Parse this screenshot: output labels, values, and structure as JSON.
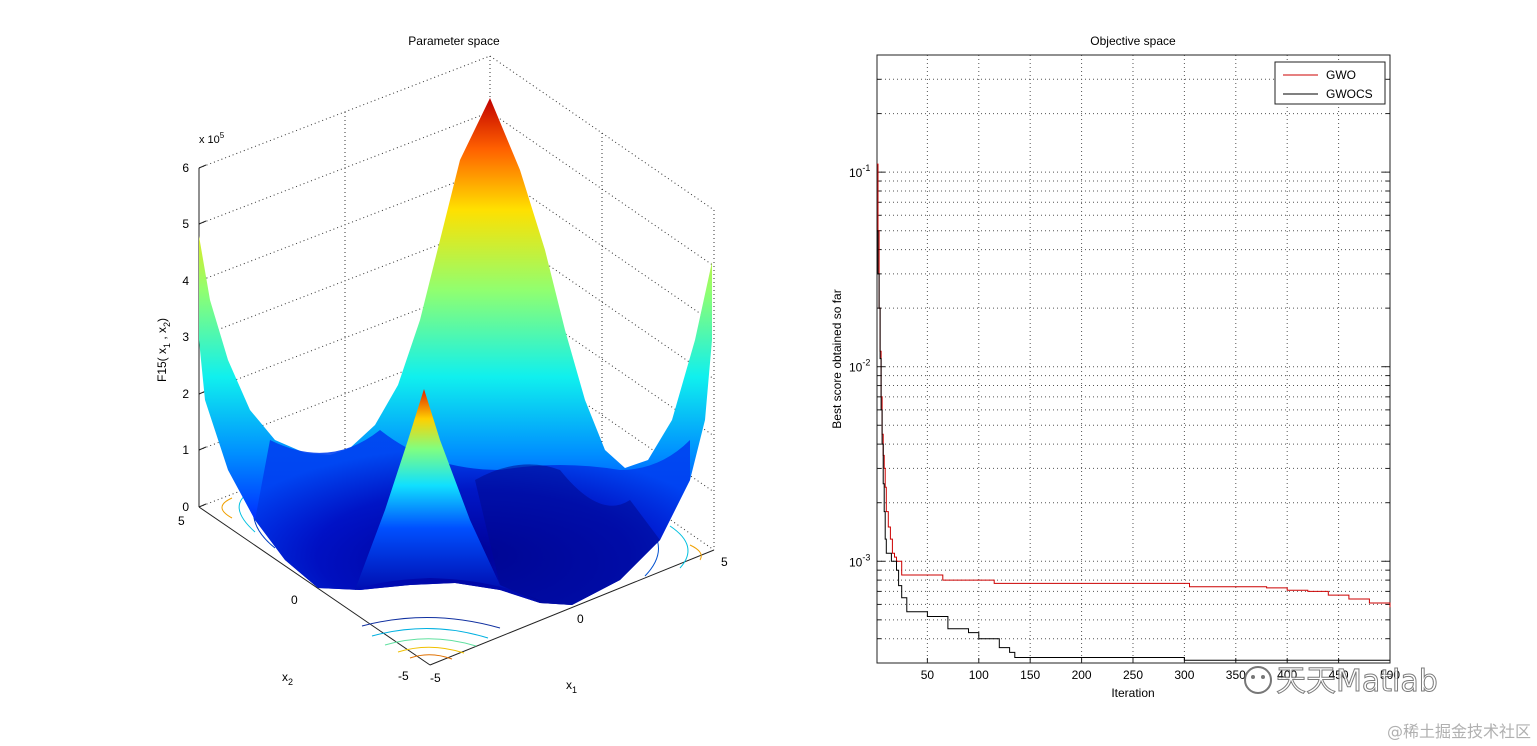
{
  "chart_data": [
    {
      "type": "surface",
      "title": "Parameter space",
      "zlabel": "F15( x_1 , x_2 )",
      "zlabel_parts": [
        "F15( x",
        "1",
        " , x",
        "2",
        ")"
      ],
      "xlabel_main": "x",
      "xlabel_sub": "1",
      "ylabel_main": "x",
      "ylabel_sub": "2",
      "z_multiplier_base": "x 10",
      "z_multiplier_exp": "5",
      "z_ticks": [
        "0",
        "1",
        "2",
        "3",
        "4",
        "5",
        "6"
      ],
      "x1_ticks": [
        "-5",
        "0",
        "5"
      ],
      "x2_ticks": [
        "-5",
        "0",
        "5"
      ],
      "zlim": [
        0,
        6
      ],
      "xlim": [
        -5,
        5
      ],
      "ylim": [
        -5,
        5
      ],
      "colormap": "jet"
    },
    {
      "type": "line",
      "title": "Objective space",
      "xlabel": "Iteration",
      "ylabel": "Best score obtained so far",
      "yscale": "log",
      "xlim": [
        1,
        500
      ],
      "ylim": [
        0.0003,
        0.4
      ],
      "x_ticks": [
        50,
        100,
        150,
        200,
        250,
        300,
        350,
        400,
        450,
        500
      ],
      "x_tick_labels": [
        "50",
        "100",
        "150",
        "200",
        "250",
        "300",
        "350",
        "400",
        "450",
        "500"
      ],
      "y_ticks": [
        0.001,
        0.01,
        0.1
      ],
      "y_tick_base": "10",
      "y_tick_exps": [
        "-3",
        "-2",
        "-1"
      ],
      "grid": true,
      "legend_position": "top-right",
      "series": [
        {
          "name": "GWO",
          "color": "#cc0000",
          "points": [
            [
              1,
              0.11
            ],
            [
              2,
              0.05
            ],
            [
              3,
              0.02
            ],
            [
              4,
              0.012
            ],
            [
              5,
              0.007
            ],
            [
              6,
              0.0045
            ],
            [
              7,
              0.0035
            ],
            [
              8,
              0.003
            ],
            [
              9,
              0.0024
            ],
            [
              10,
              0.0018
            ],
            [
              12,
              0.0015
            ],
            [
              14,
              0.0013
            ],
            [
              16,
              0.0011
            ],
            [
              18,
              0.00105
            ],
            [
              20,
              0.001
            ],
            [
              25,
              0.00085
            ],
            [
              60,
              0.00085
            ],
            [
              65,
              0.0008
            ],
            [
              110,
              0.0008
            ],
            [
              115,
              0.00077
            ],
            [
              300,
              0.00077
            ],
            [
              305,
              0.00074
            ],
            [
              380,
              0.00073
            ],
            [
              400,
              0.00071
            ],
            [
              420,
              0.0007
            ],
            [
              440,
              0.00067
            ],
            [
              460,
              0.00064
            ],
            [
              480,
              0.00061
            ],
            [
              500,
              0.00058
            ]
          ]
        },
        {
          "name": "GWOCS",
          "color": "#000000",
          "points": [
            [
              1,
              0.05
            ],
            [
              2,
              0.03
            ],
            [
              3,
              0.02
            ],
            [
              4,
              0.011
            ],
            [
              5,
              0.006
            ],
            [
              6,
              0.004
            ],
            [
              7,
              0.0025
            ],
            [
              8,
              0.0018
            ],
            [
              9,
              0.0013
            ],
            [
              10,
              0.0011
            ],
            [
              15,
              0.001
            ],
            [
              20,
              0.0009
            ],
            [
              22,
              0.00075
            ],
            [
              25,
              0.00065
            ],
            [
              30,
              0.00055
            ],
            [
              50,
              0.00052
            ],
            [
              65,
              0.00052
            ],
            [
              70,
              0.00045
            ],
            [
              90,
              0.00043
            ],
            [
              100,
              0.0004
            ],
            [
              120,
              0.00036
            ],
            [
              130,
              0.00034
            ],
            [
              135,
              0.00032
            ],
            [
              200,
              0.00032
            ],
            [
              300,
              0.00031
            ],
            [
              400,
              0.00031
            ],
            [
              500,
              0.00031
            ]
          ]
        }
      ]
    }
  ],
  "watermarks": {
    "logo_text": "天天Matlab",
    "site_text": "@稀土掘金技术社区"
  }
}
